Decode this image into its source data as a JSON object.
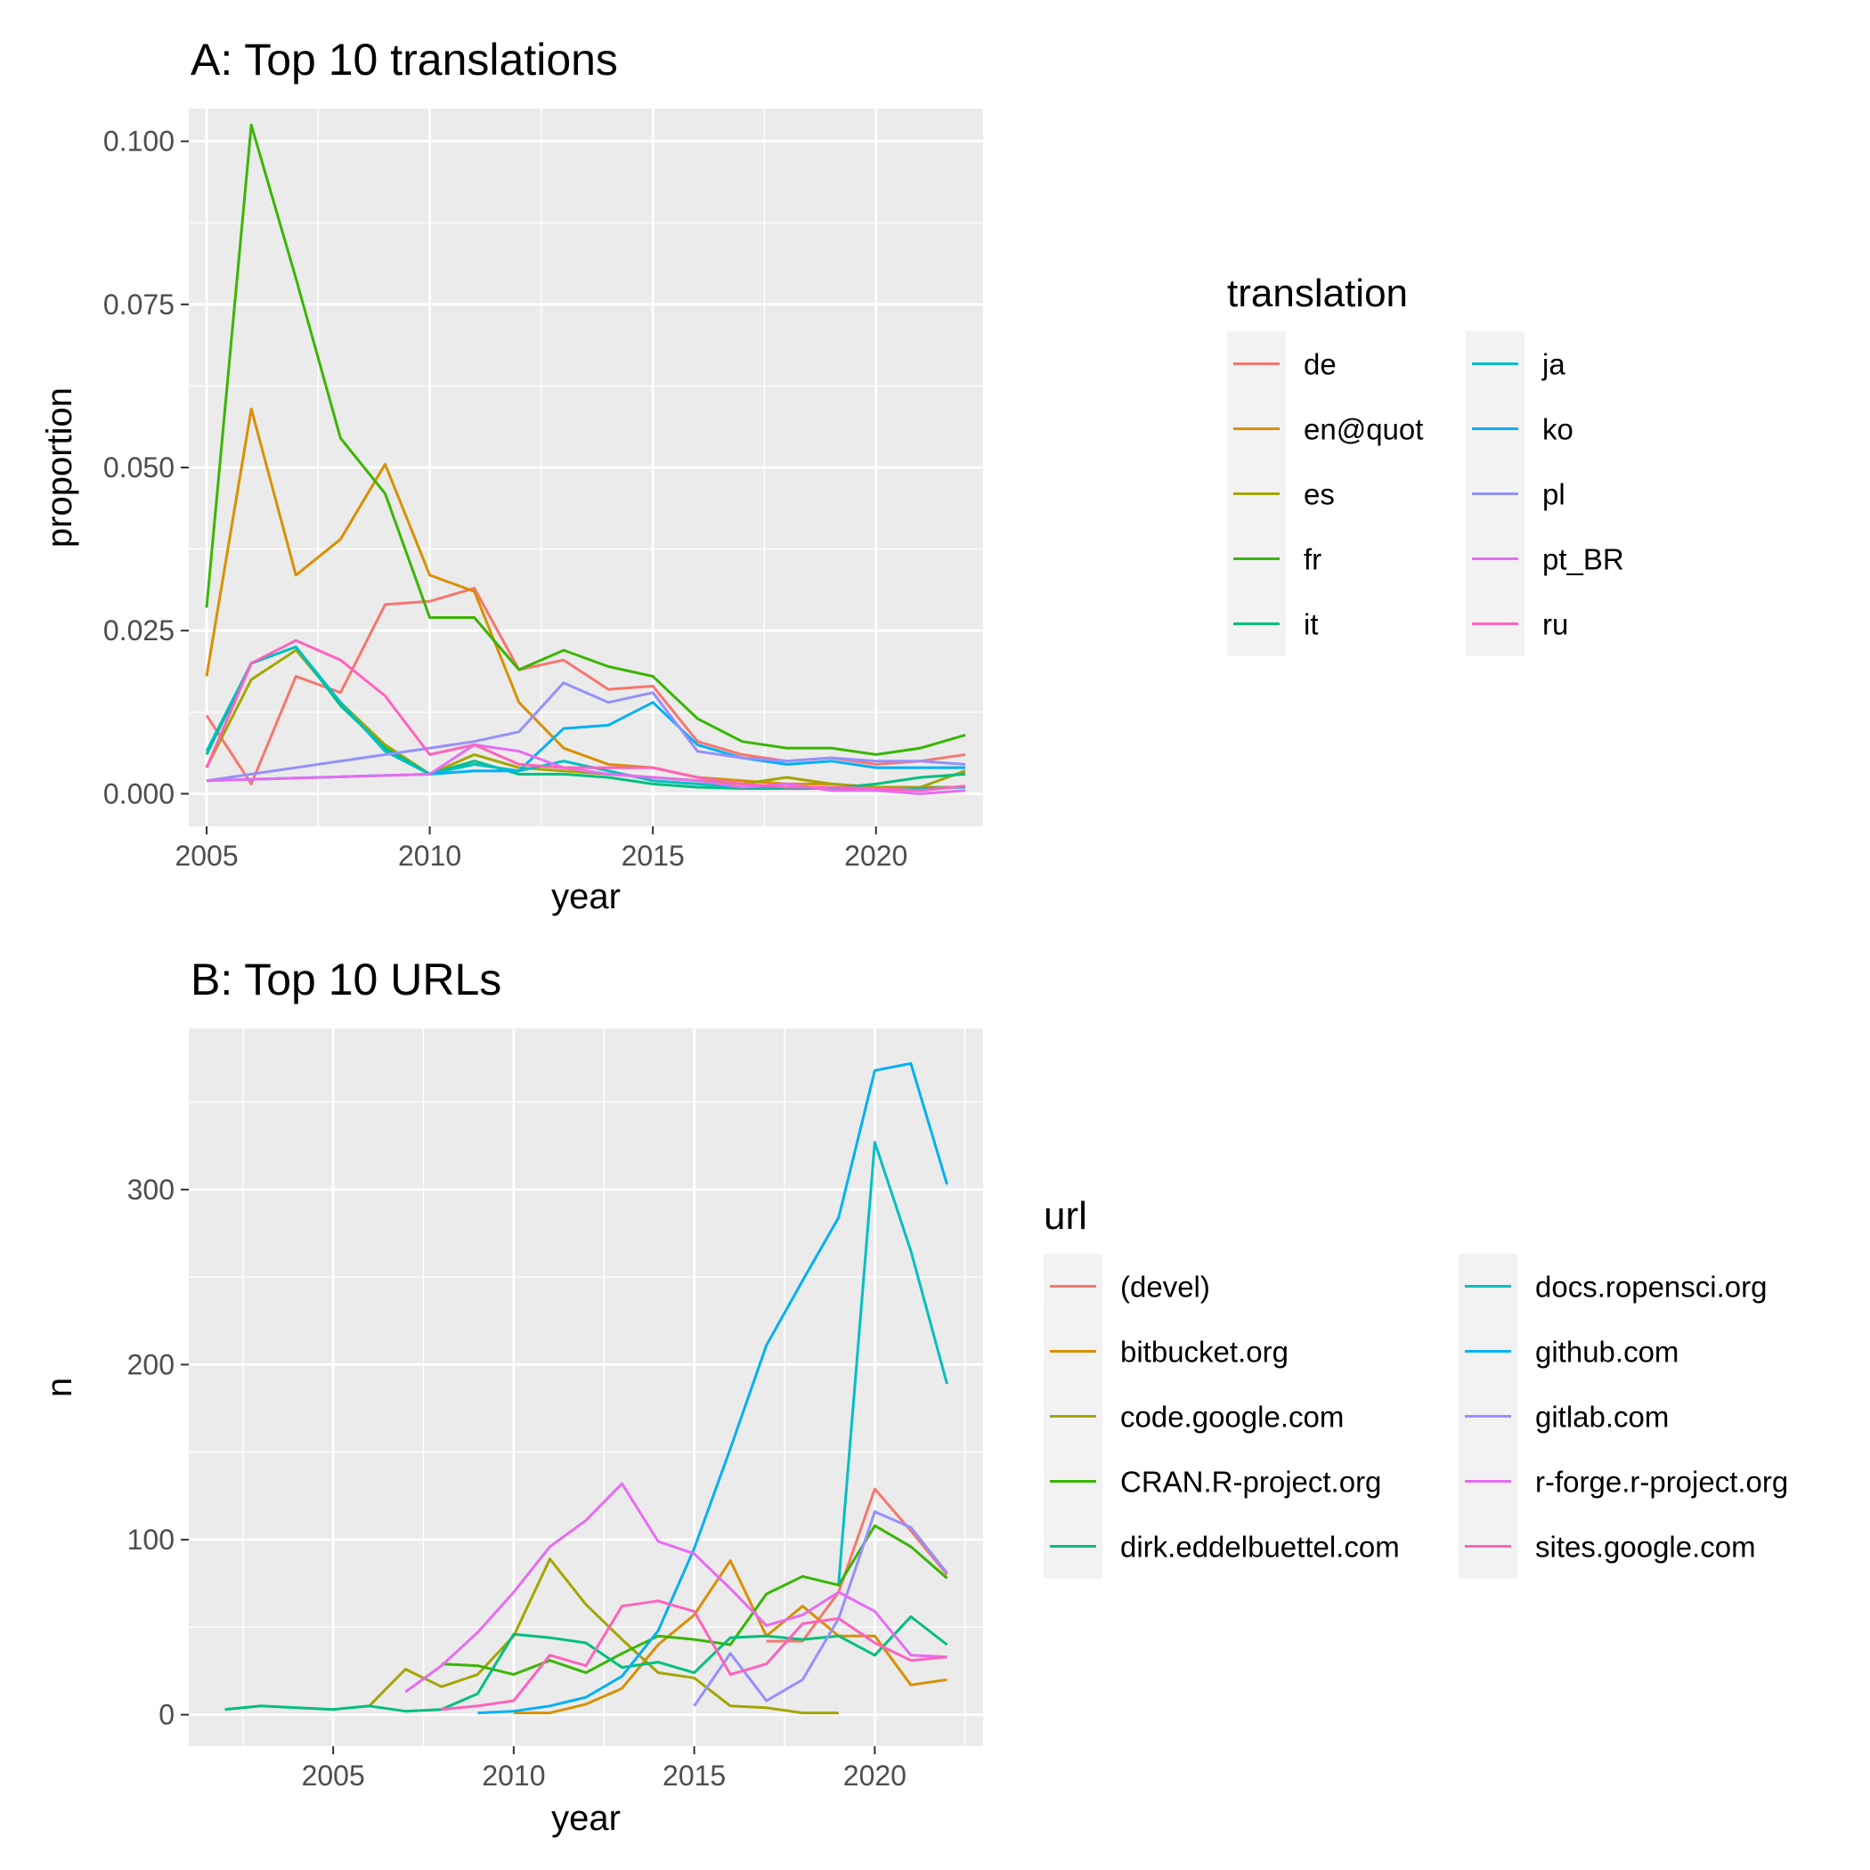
{
  "chart_data": [
    {
      "type": "line",
      "title": "A: Top 10 translations",
      "xlabel": "year",
      "ylabel": "proportion",
      "xlim": [
        2004.6,
        2022.4
      ],
      "ylim": [
        -0.005,
        0.105
      ],
      "xticks": [
        2005,
        2010,
        2015,
        2020
      ],
      "xtick_labels": [
        "2005",
        "2010",
        "2015",
        "2020"
      ],
      "yticks": [
        0,
        0.025,
        0.05,
        0.075,
        0.1
      ],
      "ytick_labels": [
        "0.000",
        "0.025",
        "0.050",
        "0.075",
        "0.100"
      ],
      "grid": true,
      "legend_position": "right",
      "legend": {
        "title": "translation",
        "columns": 2,
        "entries": [
          "de",
          "en@quot",
          "es",
          "fr",
          "it",
          "ja",
          "ko",
          "pl",
          "pt_BR",
          "ru"
        ]
      },
      "series": [
        {
          "name": "de",
          "color": "#F8766D",
          "x": [
            2005,
            2006,
            2007,
            2008,
            2009,
            2010,
            2011,
            2012,
            2013,
            2014,
            2015,
            2016,
            2017,
            2018,
            2019,
            2020,
            2021,
            2022
          ],
          "y": [
            0.012,
            0.0015,
            0.018,
            0.0155,
            0.029,
            0.0295,
            0.0315,
            0.019,
            0.0205,
            0.016,
            0.0165,
            0.008,
            0.006,
            0.005,
            0.0055,
            0.0045,
            0.005,
            0.006
          ]
        },
        {
          "name": "en@quot",
          "color": "#D89000",
          "x": [
            2005,
            2006,
            2007,
            2008,
            2009,
            2010,
            2011,
            2012,
            2013,
            2014,
            2015,
            2016,
            2017,
            2018,
            2019,
            2020,
            2021,
            2022
          ],
          "y": [
            0.018,
            0.059,
            0.0335,
            0.039,
            0.0505,
            0.0335,
            0.031,
            0.014,
            0.007,
            0.0045,
            0.004,
            0.0025,
            0.002,
            0.0015,
            0.0015,
            0.001,
            0.001,
            0.001
          ]
        },
        {
          "name": "es",
          "color": "#A3A500",
          "x": [
            2005,
            2006,
            2007,
            2008,
            2009,
            2010,
            2011,
            2012,
            2013,
            2014,
            2015,
            2016,
            2017,
            2018,
            2019,
            2020,
            2021,
            2022
          ],
          "y": [
            0.004,
            0.0175,
            0.022,
            0.014,
            0.0075,
            0.003,
            0.006,
            0.004,
            0.0035,
            0.003,
            0.0025,
            0.002,
            0.0015,
            0.0025,
            0.0015,
            0.001,
            0.001,
            0.0035
          ]
        },
        {
          "name": "fr",
          "color": "#39B600",
          "x": [
            2005,
            2006,
            2007,
            2008,
            2009,
            2010,
            2011,
            2012,
            2013,
            2014,
            2015,
            2016,
            2017,
            2018,
            2019,
            2020,
            2021,
            2022
          ],
          "y": [
            0.0285,
            0.1025,
            0.079,
            0.0545,
            0.046,
            0.027,
            0.027,
            0.019,
            0.022,
            0.0195,
            0.018,
            0.0115,
            0.008,
            0.007,
            0.007,
            0.006,
            0.007,
            0.009
          ]
        },
        {
          "name": "it",
          "color": "#00BF7D",
          "x": [
            2005,
            2006,
            2007,
            2008,
            2009,
            2010,
            2011,
            2012,
            2013,
            2014,
            2015,
            2016,
            2017,
            2018,
            2019,
            2020,
            2021,
            2022
          ],
          "y": [
            0.006,
            0.02,
            0.0225,
            0.0135,
            0.007,
            0.003,
            0.005,
            0.003,
            0.003,
            0.0025,
            0.0015,
            0.001,
            0.0008,
            0.0008,
            0.0008,
            0.0015,
            0.0025,
            0.003
          ]
        },
        {
          "name": "ja",
          "color": "#00BFC4",
          "x": [
            2005,
            2006,
            2007,
            2008,
            2009,
            2010,
            2011,
            2012,
            2013,
            2014,
            2015,
            2016,
            2017,
            2018,
            2019,
            2020,
            2021,
            2022
          ],
          "y": [
            0.0065,
            0.02,
            0.0225,
            0.014,
            0.0065,
            0.003,
            0.0045,
            0.0035,
            0.005,
            0.0035,
            0.002,
            0.0015,
            0.001,
            0.001,
            0.0008,
            0.0005,
            0.0008,
            0.001
          ]
        },
        {
          "name": "ko",
          "color": "#00B0F6",
          "x": [
            2005,
            2010,
            2011,
            2012,
            2013,
            2014,
            2015,
            2016,
            2017,
            2018,
            2019,
            2020,
            2021,
            2022
          ],
          "y": [
            0.002,
            0.003,
            0.0035,
            0.0035,
            0.01,
            0.0105,
            0.014,
            0.0075,
            0.0055,
            0.0045,
            0.005,
            0.004,
            0.004,
            0.004
          ]
        },
        {
          "name": "pl",
          "color": "#9590FF",
          "x": [
            2005,
            2010,
            2011,
            2012,
            2013,
            2014,
            2015,
            2016,
            2017,
            2018,
            2019,
            2020,
            2021,
            2022
          ],
          "y": [
            0.002,
            0.007,
            0.008,
            0.0095,
            0.017,
            0.014,
            0.0155,
            0.0065,
            0.0055,
            0.005,
            0.0055,
            0.005,
            0.005,
            0.0045
          ]
        },
        {
          "name": "pt_BR",
          "color": "#E76BF3",
          "x": [
            2005,
            2010,
            2011,
            2012,
            2013,
            2014,
            2015,
            2016,
            2017,
            2018,
            2019,
            2020,
            2021,
            2022
          ],
          "y": [
            0.002,
            0.003,
            0.0075,
            0.0065,
            0.004,
            0.003,
            0.0025,
            0.002,
            0.001,
            0.0015,
            0.0005,
            0.0005,
            0,
            0.0005
          ]
        },
        {
          "name": "ru",
          "color": "#FF62BC",
          "x": [
            2005,
            2006,
            2007,
            2008,
            2009,
            2010,
            2011,
            2012,
            2013,
            2014,
            2015,
            2016,
            2017,
            2018,
            2019,
            2020,
            2021,
            2022
          ],
          "y": [
            0.004,
            0.02,
            0.0235,
            0.0205,
            0.015,
            0.006,
            0.0075,
            0.0045,
            0.004,
            0.004,
            0.004,
            0.0025,
            0.0015,
            0.001,
            0.001,
            0.0008,
            0.0005,
            0.0012
          ]
        }
      ]
    },
    {
      "type": "line",
      "title": "B: Top 10 URLs",
      "xlabel": "year",
      "ylabel": "n",
      "xlim": [
        2001.0,
        2023.0
      ],
      "ylim": [
        -18,
        392
      ],
      "xticks": [
        2005,
        2010,
        2015,
        2020
      ],
      "xtick_labels": [
        "2005",
        "2010",
        "2015",
        "2020"
      ],
      "yticks": [
        0,
        100,
        200,
        300
      ],
      "ytick_labels": [
        "0",
        "100",
        "200",
        "300"
      ],
      "grid": true,
      "legend_position": "right",
      "legend": {
        "title": "url",
        "columns": 2,
        "entries": [
          "(devel)",
          "bitbucket.org",
          "code.google.com",
          "CRAN.R-project.org",
          "dirk.eddelbuettel.com",
          "docs.ropensci.org",
          "github.com",
          "gitlab.com",
          "r-forge.r-project.org",
          "sites.google.com"
        ]
      },
      "series": [
        {
          "name": "(devel)",
          "color": "#F8766D",
          "x": [
            2017,
            2018,
            2019,
            2020,
            2021,
            2022
          ],
          "y": [
            42,
            42,
            70,
            129,
            105,
            80
          ]
        },
        {
          "name": "bitbucket.org",
          "color": "#D89000",
          "x": [
            2010,
            2011,
            2012,
            2013,
            2014,
            2015,
            2016,
            2017,
            2018,
            2019,
            2020,
            2021,
            2022
          ],
          "y": [
            1,
            1,
            6,
            15,
            40,
            57,
            88,
            45,
            62,
            45,
            45,
            17,
            20
          ]
        },
        {
          "name": "code.google.com",
          "color": "#A3A500",
          "x": [
            2006,
            2007,
            2008,
            2009,
            2010,
            2011,
            2012,
            2013,
            2014,
            2015,
            2016,
            2017,
            2018,
            2019
          ],
          "y": [
            5,
            26,
            16,
            23,
            45,
            89,
            63,
            43,
            24,
            21,
            5,
            4,
            1,
            1
          ]
        },
        {
          "name": "CRAN.R-project.org",
          "color": "#39B600",
          "x": [
            2008,
            2009,
            2010,
            2011,
            2012,
            2013,
            2014,
            2015,
            2016,
            2017,
            2018,
            2019,
            2020,
            2021,
            2022
          ],
          "y": [
            29,
            28,
            23,
            31,
            24,
            35,
            45,
            43,
            40,
            69,
            79,
            74,
            108,
            96,
            78
          ]
        },
        {
          "name": "dirk.eddelbuettel.com",
          "color": "#00BF7D",
          "x": [
            2002,
            2003,
            2004,
            2005,
            2006,
            2007,
            2008,
            2009,
            2010,
            2011,
            2012,
            2013,
            2014,
            2015,
            2016,
            2017,
            2018,
            2019,
            2020,
            2021,
            2022
          ],
          "y": [
            3,
            5,
            4,
            3,
            5,
            2,
            3,
            12,
            46,
            44,
            41,
            27,
            30,
            24,
            44,
            45,
            43,
            45,
            34,
            56,
            40
          ]
        },
        {
          "name": "docs.ropensci.org",
          "color": "#00BFC4",
          "x": [
            2019,
            2020,
            2021,
            2022
          ],
          "y": [
            75,
            327,
            265,
            189
          ]
        },
        {
          "name": "github.com",
          "color": "#00B0F6",
          "x": [
            2009,
            2010,
            2011,
            2012,
            2013,
            2014,
            2015,
            2016,
            2017,
            2018,
            2019,
            2020,
            2021,
            2022
          ],
          "y": [
            1,
            2,
            5,
            10,
            22,
            48,
            95,
            152,
            211,
            248,
            284,
            368,
            372,
            303
          ]
        },
        {
          "name": "gitlab.com",
          "color": "#9590FF",
          "x": [
            2015,
            2016,
            2017,
            2018,
            2019,
            2020,
            2021,
            2022
          ],
          "y": [
            5,
            35,
            8,
            20,
            55,
            116,
            107,
            81
          ]
        },
        {
          "name": "r-forge.r-project.org",
          "color": "#E76BF3",
          "x": [
            2007,
            2008,
            2009,
            2010,
            2011,
            2012,
            2013,
            2014,
            2015,
            2016,
            2017,
            2018,
            2019,
            2020,
            2021,
            2022
          ],
          "y": [
            13,
            28,
            47,
            70,
            96,
            111,
            132,
            99,
            92,
            72,
            51,
            57,
            70,
            59,
            34,
            33
          ]
        },
        {
          "name": "sites.google.com",
          "color": "#FF62BC",
          "x": [
            2008,
            2009,
            2010,
            2011,
            2012,
            2013,
            2014,
            2015,
            2016,
            2017,
            2018,
            2019,
            2020,
            2021,
            2022
          ],
          "y": [
            3,
            5,
            8,
            34,
            28,
            62,
            65,
            59,
            23,
            29,
            52,
            55,
            41,
            31,
            33
          ]
        }
      ]
    }
  ]
}
